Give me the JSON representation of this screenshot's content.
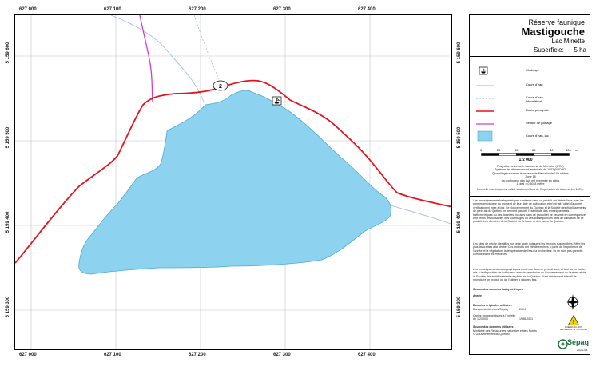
{
  "map": {
    "x_coords": [
      "627 000",
      "627 100",
      "627 200",
      "627 300",
      "627 400"
    ],
    "y_coords": [
      "5 159 600",
      "5 159 500",
      "5 159 400",
      "5 159 300"
    ],
    "route_number": "2",
    "colors": {
      "water": "#8dd3ef",
      "water_outline": "#4fa7cf",
      "road": "#e8121c",
      "trail": "#d63ad6",
      "stream": "#9bb2e6",
      "grid": "#bdbdbd"
    }
  },
  "title": {
    "reserve": "Réserve faunique",
    "name": "Mastigouche",
    "lake": "Lac Minette",
    "area_label": "Superficie:",
    "area_value": "5 ha"
  },
  "legend": [
    {
      "label": "Chaloupe",
      "icon": "boat-icon"
    },
    {
      "label": "Cours d'eau",
      "icon": "stream-line"
    },
    {
      "label": "Cours d'eau intermittent",
      "icon": "intermittent-stream-line"
    },
    {
      "label": "Route principale",
      "icon": "main-road-line"
    },
    {
      "label": "Sentier de portage",
      "icon": "portage-trail-line"
    },
    {
      "label": "Cours d'eau, lac",
      "icon": "water-area-box"
    }
  ],
  "scale": {
    "ticks": [
      "0",
      "20",
      "40",
      "60",
      "80",
      "100"
    ],
    "unit": "m",
    "ratio": "1:2 000"
  },
  "projection_text": [
    "Projection universelle transverse de Mercator (UTM)",
    "Système de référence nord-américain de 1983 (NAD 83)",
    "Quadrillage universel transverse de Mercator de 100 mètres",
    "Zone 18",
    "La profondeur des lacs est exprimée en pieds",
    "1 pied = 0,3048 mètre"
  ],
  "scale_note": "L'échelle numérique est valide seulement lors de l'impression du document à 100%.",
  "disclaimer_1": "Les renseignements bathymétriques contenus dans ce produit ont été réalisés avec les normes en vigueur au moment de leur date de publication et n'ont fait l'objet d'aucune vérification ni mise à jour. Le Gouvernement du Québec et la Société des établissements de plein air du Québec ne peuvent garantir l'exactitude des renseignements bathymétriques ou des données incluses dans ce produit et ne peuvent en conséquence être tenus responsables des dommages ou des conséquences liées à l'utilisation de ce produit. Les données de la Société de la faune et des parcs du Québec.",
  "disclaimer_2": "Les sites de pêche identifiés sur cette carte indiquent les endroits susceptibles d'être les plus favorables à la pêche. Ces endroits ont été déterminés à partir de l'expérience de l'année et la végétation, la température de l'eau, la profondeur. Ils ne sont pas garantis comme étant les meilleurs.",
  "disclaimer_3": "Les renseignements cartographiques contenus dans ce produit sont, et tout ou en partie, mis à la disposition de l'utilisateur avec la permission du Gouvernement du Québec et de la Société des établissements de plein air du Québec. Il est strictement interdit de reproduire ce produit ou de l'utiliser à d'autres fins.",
  "sources": {
    "heading": "Source des données bathymétriques",
    "year_label": "Année",
    "orig_heading": "Données originales utilisées",
    "orig_item": "Banque de données Sépaq",
    "orig_year": "2024",
    "topo_item": "Cartes topographiques à l'échelle de 1:20 000",
    "topo_year": "1988-2001",
    "used_heading": "Source des données utilisées",
    "used_item": "Ministère des Ressources naturelles et des Forêts © Gouvernement du Québec"
  },
  "quebec_caption": "QUÉBEC AU-BOIS RAPIDEMENT ET ÉCOUTER",
  "brand": "Sépaq",
  "doc_date": "2024-04"
}
